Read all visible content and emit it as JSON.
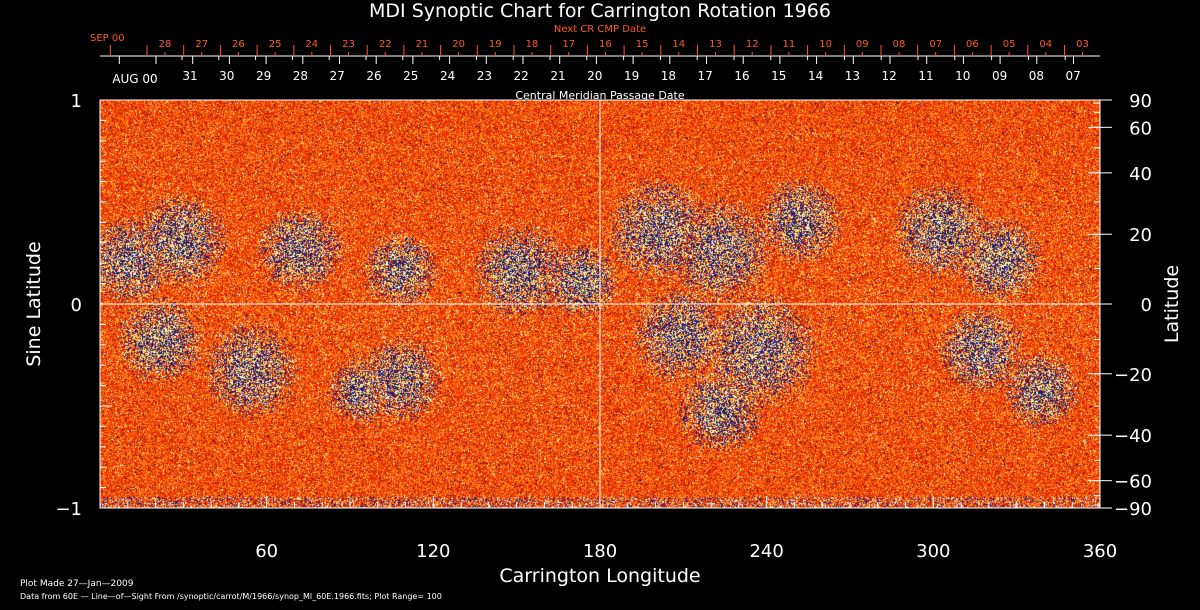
{
  "chart_data": {
    "type": "heatmap",
    "title": "MDI Synoptic Chart for Carrington Rotation 1966",
    "xlabel": "Carrington Longitude",
    "ylabel_left": "Sine Latitude",
    "ylabel_right": "Latitude",
    "xlim": [
      0,
      360
    ],
    "ylim_sine": [
      -1,
      1
    ],
    "x_ticks": [
      60,
      120,
      180,
      240,
      300,
      360
    ],
    "y_ticks_left": [
      {
        "value": 1,
        "label": "1"
      },
      {
        "value": 0,
        "label": "0"
      },
      {
        "value": -1,
        "label": "−1"
      }
    ],
    "y_ticks_right": [
      90,
      60,
      40,
      20,
      0,
      -20,
      -40,
      -60,
      -90
    ],
    "top_axis_next": {
      "label": "Next CR CMP Date",
      "month_label": "SEP 00",
      "ticks": [
        "28",
        "27",
        "26",
        "25",
        "24",
        "23",
        "22",
        "21",
        "20",
        "19",
        "18",
        "17",
        "16",
        "15",
        "14",
        "13",
        "12",
        "11",
        "10",
        "09",
        "08",
        "07",
        "06",
        "05",
        "04",
        "03"
      ],
      "color": "#ff5a1e"
    },
    "top_axis_cmp": {
      "label": "Central Meridian Passage Date",
      "month_label": "AUG 00",
      "ticks": [
        "31",
        "30",
        "29",
        "28",
        "27",
        "26",
        "25",
        "24",
        "23",
        "22",
        "21",
        "20",
        "19",
        "18",
        "17",
        "16",
        "15",
        "14",
        "13",
        "12",
        "11",
        "10",
        "09",
        "08",
        "07"
      ]
    },
    "plot_range": 100
  },
  "footer": {
    "plot_made": "Plot Made 27—Jan—2009",
    "data_source": "Data from 60E — Line—of—Sight From /synoptic/carrot/M/1966/synop_Ml_60E.1966.fits; Plot Range=  100"
  }
}
